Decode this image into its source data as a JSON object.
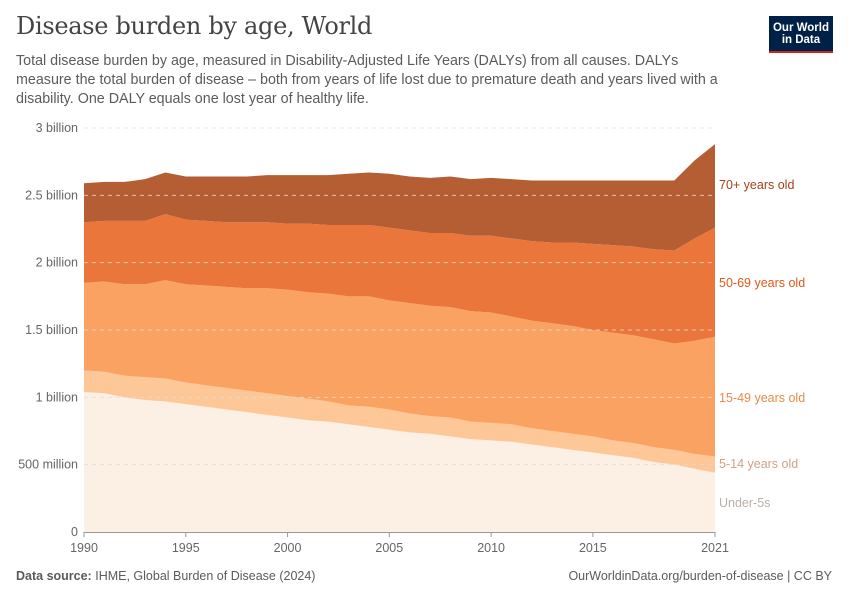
{
  "header": {
    "title": "Disease burden by age, World",
    "subtitle": "Total disease burden by age, measured in Disability-Adjusted Life Years (DALYs) from all causes. DALYs measure the total burden of disease – both from years of life lost due to premature death and years lived with a disability. One DALY equals one lost year of healthy life.",
    "logo_line1": "Our World",
    "logo_line2": "in Data"
  },
  "footer": {
    "source_label": "Data source:",
    "source": "IHME, Global Burden of Disease (2024)",
    "url": "OurWorldinData.org/burden-of-disease | CC BY"
  },
  "chart_data": {
    "type": "area",
    "stacked": true,
    "unit": "DALYs (billions)",
    "ylim": [
      0,
      3
    ],
    "xlim": [
      1990,
      2021
    ],
    "grid": "horizontal-dashed",
    "legend": "right-inline",
    "y_ticks": [
      {
        "value": 0,
        "label": "0"
      },
      {
        "value": 0.5,
        "label": "500 million"
      },
      {
        "value": 1,
        "label": "1 billion"
      },
      {
        "value": 1.5,
        "label": "1.5 billion"
      },
      {
        "value": 2,
        "label": "2 billion"
      },
      {
        "value": 2.5,
        "label": "2.5 billion"
      },
      {
        "value": 3,
        "label": "3 billion"
      }
    ],
    "x_ticks": [
      {
        "value": 1990,
        "label": "1990"
      },
      {
        "value": 1995,
        "label": "1995"
      },
      {
        "value": 2000,
        "label": "2000"
      },
      {
        "value": 2005,
        "label": "2005"
      },
      {
        "value": 2010,
        "label": "2010"
      },
      {
        "value": 2015,
        "label": "2015"
      },
      {
        "value": 2021,
        "label": "2021"
      }
    ],
    "x": [
      1990,
      1991,
      1992,
      1993,
      1994,
      1995,
      1996,
      1997,
      1998,
      1999,
      2000,
      2001,
      2002,
      2003,
      2004,
      2005,
      2006,
      2007,
      2008,
      2009,
      2010,
      2011,
      2012,
      2013,
      2014,
      2015,
      2016,
      2017,
      2018,
      2019,
      2020,
      2021
    ],
    "series": [
      {
        "name": "Under-5s",
        "color": "#fcefe3",
        "label_color": "#b8b0aa",
        "values": [
          1.04,
          1.03,
          1.0,
          0.98,
          0.97,
          0.95,
          0.93,
          0.91,
          0.89,
          0.87,
          0.85,
          0.83,
          0.82,
          0.8,
          0.78,
          0.76,
          0.74,
          0.73,
          0.71,
          0.69,
          0.68,
          0.67,
          0.65,
          0.63,
          0.61,
          0.59,
          0.57,
          0.55,
          0.52,
          0.5,
          0.47,
          0.44
        ]
      },
      {
        "name": "5-14 years old",
        "color": "#fdc797",
        "label_color": "#cfa285",
        "values": [
          0.16,
          0.16,
          0.16,
          0.17,
          0.17,
          0.16,
          0.16,
          0.16,
          0.16,
          0.16,
          0.16,
          0.16,
          0.15,
          0.14,
          0.15,
          0.15,
          0.14,
          0.13,
          0.14,
          0.13,
          0.13,
          0.13,
          0.12,
          0.12,
          0.12,
          0.12,
          0.11,
          0.11,
          0.11,
          0.11,
          0.11,
          0.12
        ]
      },
      {
        "name": "15-49 years old",
        "color": "#f9a262",
        "label_color": "#e98a4a",
        "values": [
          0.65,
          0.67,
          0.68,
          0.69,
          0.73,
          0.73,
          0.74,
          0.75,
          0.76,
          0.78,
          0.79,
          0.79,
          0.8,
          0.81,
          0.82,
          0.81,
          0.82,
          0.82,
          0.82,
          0.82,
          0.82,
          0.8,
          0.8,
          0.8,
          0.8,
          0.79,
          0.8,
          0.8,
          0.8,
          0.79,
          0.84,
          0.89
        ]
      },
      {
        "name": "50-69 years old",
        "color": "#ea763b",
        "label_color": "#e2591c",
        "values": [
          0.45,
          0.45,
          0.47,
          0.47,
          0.49,
          0.48,
          0.48,
          0.48,
          0.49,
          0.49,
          0.49,
          0.51,
          0.51,
          0.53,
          0.53,
          0.54,
          0.54,
          0.54,
          0.55,
          0.56,
          0.57,
          0.58,
          0.59,
          0.6,
          0.62,
          0.64,
          0.65,
          0.66,
          0.67,
          0.69,
          0.76,
          0.81
        ]
      },
      {
        "name": "70+ years old",
        "color": "#b55d33",
        "label_color": "#a5401b",
        "values": [
          0.29,
          0.29,
          0.29,
          0.31,
          0.31,
          0.32,
          0.33,
          0.34,
          0.34,
          0.35,
          0.36,
          0.36,
          0.37,
          0.38,
          0.39,
          0.4,
          0.4,
          0.41,
          0.42,
          0.42,
          0.43,
          0.44,
          0.45,
          0.46,
          0.46,
          0.47,
          0.48,
          0.49,
          0.51,
          0.52,
          0.58,
          0.62
        ]
      }
    ]
  }
}
